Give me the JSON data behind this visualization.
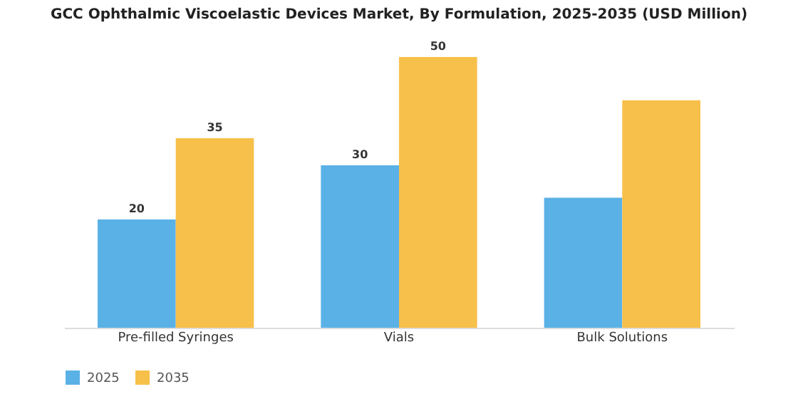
{
  "chart_data": {
    "type": "bar",
    "title": "GCC Ophthalmic Viscoelastic Devices Market, By Formulation, 2025-2035 (USD Million)",
    "categories": [
      "Pre-filled Syringes",
      "Vials",
      "Bulk Solutions"
    ],
    "series": [
      {
        "name": "2025",
        "color": "#5ab1e6",
        "values": [
          20,
          30,
          24
        ],
        "value_labels": [
          "20",
          "30",
          null
        ]
      },
      {
        "name": "2035",
        "color": "#f7c04a",
        "values": [
          35,
          50,
          42
        ],
        "value_labels": [
          "35",
          "50",
          null
        ]
      }
    ],
    "legend": "bottom",
    "grid": false
  }
}
